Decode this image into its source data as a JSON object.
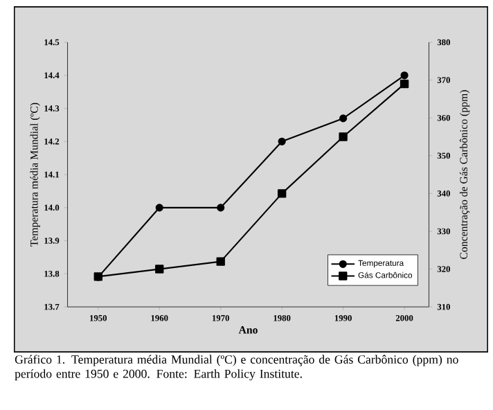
{
  "chart_data": {
    "type": "line",
    "x": [
      1950,
      1960,
      1970,
      1980,
      1990,
      2000
    ],
    "series": [
      {
        "name": "Temperatura",
        "color": "#000000",
        "marker": "circle",
        "values": [
          13.79,
          14.0,
          14.0,
          14.2,
          14.27,
          14.4
        ]
      },
      {
        "name": "Gás Carbônico",
        "color": "#000000",
        "marker": "square",
        "axis": "y2",
        "values": [
          318,
          320,
          322,
          340,
          355,
          369
        ]
      }
    ],
    "xlabel": "Ano",
    "ylabel": "Temperatura média Mundial (ºC)",
    "y2label": "Concentração de Gás Carbônico (ppm)",
    "xlim": [
      1945,
      2004
    ],
    "xticks": [
      1950,
      1960,
      1970,
      1980,
      1990,
      2000
    ],
    "ylim": [
      13.7,
      14.5
    ],
    "yticks": [
      {
        "value": 13.7,
        "label": "13.7"
      },
      {
        "value": 13.8,
        "label": "13.8"
      },
      {
        "value": 13.9,
        "label": "13.9"
      },
      {
        "value": 14.0,
        "label": "14.0"
      },
      {
        "value": 14.1,
        "label": "14.1"
      },
      {
        "value": 14.2,
        "label": "14.2"
      },
      {
        "value": 14.3,
        "label": "14.3"
      },
      {
        "value": 14.4,
        "label": "14.4"
      },
      {
        "value": 14.5,
        "label": "14.5"
      }
    ],
    "y2lim": [
      310,
      380
    ],
    "y2ticks": [
      310,
      320,
      330,
      340,
      350,
      360,
      370,
      380
    ],
    "legend": "bottom right",
    "grid": false,
    "line_style": "solid",
    "annotations": [
      "Gráfico 1. Temperatura média Mundial (ºC) e concentração de Gás Carbônico (ppm) no período entre 1950 e 2000. Fonte: Earth Policy Institute."
    ]
  }
}
